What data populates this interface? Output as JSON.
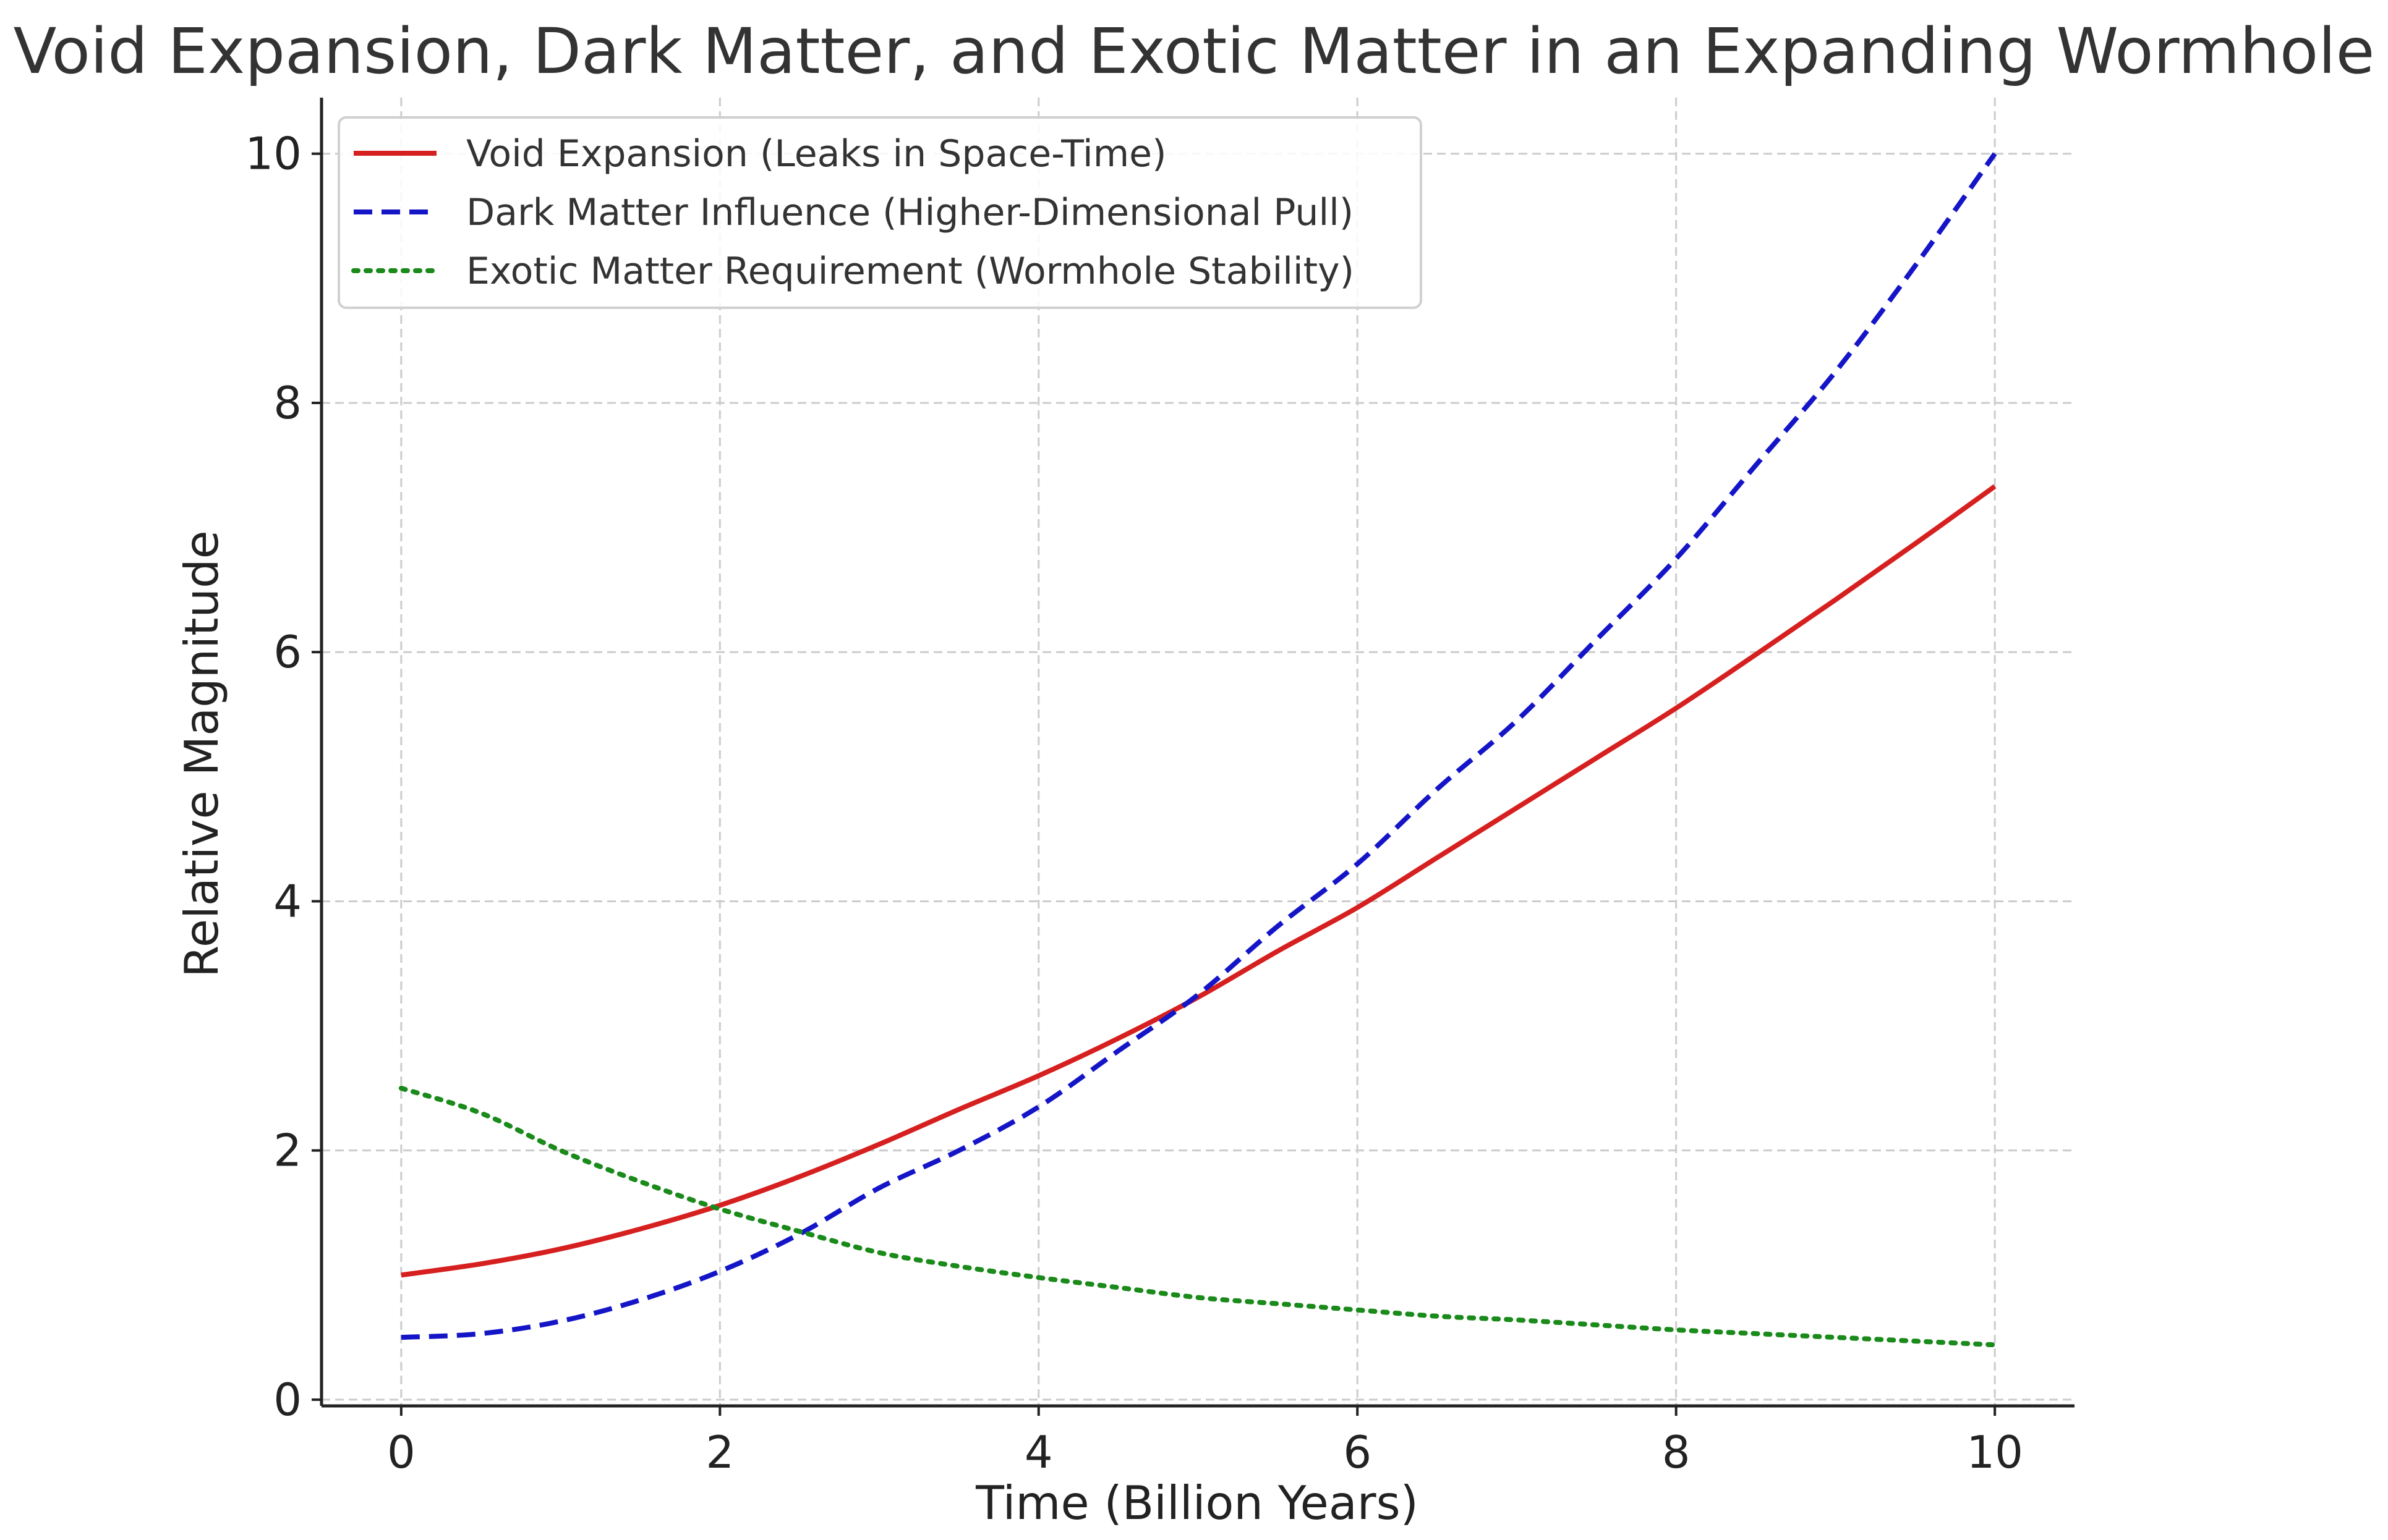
{
  "chart_data": {
    "type": "line",
    "title": "Void Expansion, Dark Matter, and Exotic Matter in an Expanding Wormhole",
    "xlabel": "Time (Billion Years)",
    "ylabel": "Relative Magnitude",
    "xlim": [
      -0.5,
      10.5
    ],
    "ylim": [
      -0.05,
      10.45
    ],
    "xticks": [
      0,
      2,
      4,
      6,
      8,
      10
    ],
    "yticks": [
      0,
      2,
      4,
      6,
      8,
      10
    ],
    "grid": true,
    "legend_position": "top-left",
    "x": [
      0,
      0.5,
      1,
      1.5,
      2,
      2.5,
      3,
      3.5,
      4,
      4.5,
      5,
      5.5,
      6,
      6.5,
      7,
      7.5,
      8,
      8.5,
      9,
      9.5,
      10
    ],
    "series": [
      {
        "name": "Void Expansion (Leaks in Space-Time)",
        "color": "#d62020",
        "style": "solid",
        "values": [
          1.0,
          1.09,
          1.21,
          1.37,
          1.56,
          1.79,
          2.05,
          2.33,
          2.6,
          2.9,
          3.23,
          3.6,
          3.95,
          4.35,
          4.75,
          5.15,
          5.55,
          5.98,
          6.42,
          6.87,
          7.33
        ]
      },
      {
        "name": "Dark Matter Influence (Higher-Dimensional Pull)",
        "color": "#1515c8",
        "style": "dashed",
        "values": [
          0.5,
          0.53,
          0.63,
          0.8,
          1.03,
          1.33,
          1.7,
          2.0,
          2.35,
          2.8,
          3.25,
          3.8,
          4.3,
          4.9,
          5.45,
          6.1,
          6.75,
          7.5,
          8.25,
          9.1,
          10.0
        ]
      },
      {
        "name": "Exotic Matter Requirement (Wormhole Stability)",
        "color": "#1a8a1a",
        "style": "dotted",
        "values": [
          2.5,
          2.3,
          2.0,
          1.75,
          1.53,
          1.35,
          1.18,
          1.07,
          0.98,
          0.9,
          0.82,
          0.77,
          0.72,
          0.67,
          0.64,
          0.6,
          0.56,
          0.53,
          0.5,
          0.47,
          0.44
        ]
      }
    ]
  }
}
